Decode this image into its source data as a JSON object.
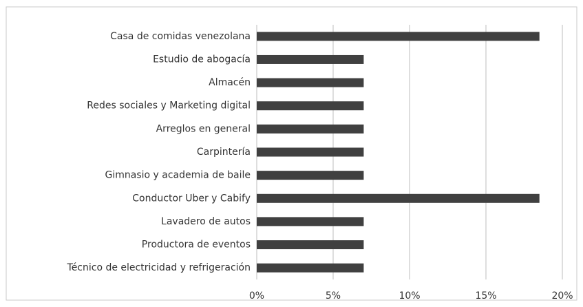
{
  "chart_data": {
    "type": "bar",
    "orientation": "horizontal",
    "categories": [
      "Casa de comidas venezolana",
      "Estudio de abogacía",
      "Almacén",
      "Redes sociales y Marketing digital",
      "Arreglos en general",
      "Carpintería",
      "Gimnasio y academia de baile",
      "Conductor Uber y Cabify",
      "Lavadero de autos",
      "Productora de eventos",
      "Técnico de electricidad y refrigeración"
    ],
    "values": [
      18.5,
      7,
      7,
      7,
      7,
      7,
      7,
      18.5,
      7,
      7,
      7
    ],
    "color": "#404040",
    "xlim": [
      0,
      20
    ],
    "xticks": [
      {
        "value": 0,
        "label": "0%"
      },
      {
        "value": 5,
        "label": "5%"
      },
      {
        "value": 10,
        "label": "10%"
      },
      {
        "value": 15,
        "label": "15%"
      },
      {
        "value": 20,
        "label": "20%"
      }
    ],
    "grid": true
  }
}
